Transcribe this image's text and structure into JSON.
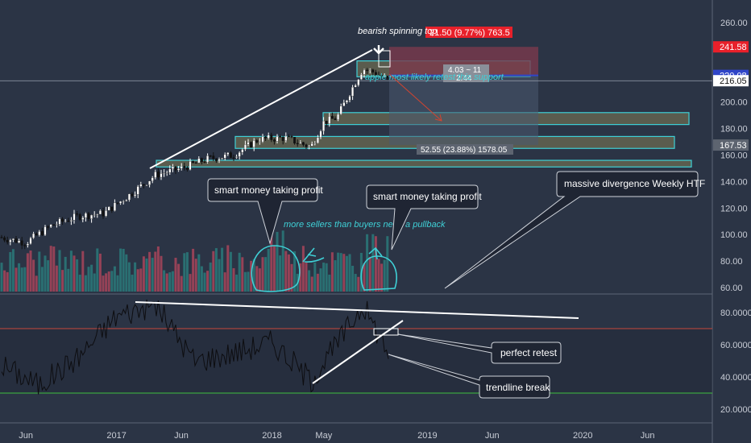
{
  "colors": {
    "background": "#2b3445",
    "candle_up": "#ffffff",
    "candle_down": "#111111",
    "volume_up": "#2a7a7a",
    "volume_down": "#a8455a",
    "zone_stroke": "#3fd0d6",
    "zone_fill": "#6b6a52",
    "trendline": "#ffffff",
    "rsi_line": "#0d0d10",
    "rsi_upper": "#c8483c",
    "rsi_lower": "#3fbf3f",
    "callout_fill": "#1f2533",
    "accent_cyan": "#3fd0d6",
    "price_tag_red": "#e8202a",
    "price_tag_white": "#ffffff",
    "price_tag_blue": "#2f45c8",
    "price_tag_gray": "#5d6470"
  },
  "chart_data": [
    {
      "type": "candlestick",
      "panel": "price",
      "y_axis_ticks": [
        "260.00",
        "240.00",
        "220.00",
        "200.00",
        "180.00",
        "160.00",
        "140.00",
        "120.00",
        "100.00",
        "80.00",
        "60.00"
      ],
      "x_axis_ticks": [
        "Jun",
        "2017",
        "Jun",
        "2018",
        "May",
        "2019",
        "Jun",
        "2020",
        "Jun"
      ],
      "ylim": [
        57,
        266
      ],
      "y_scale": "linear",
      "grid": false,
      "series": [
        {
          "x": [
            "2016-04",
            "2016-06",
            "2016-08",
            "2016-10",
            "2016-12",
            "2017-02",
            "2017-04",
            "2017-06",
            "2017-08",
            "2017-10",
            "2017-12",
            "2018-02",
            "2018-04",
            "2018-05",
            "2018-06",
            "2018-07",
            "2018-08",
            "2018-09",
            "2018-10"
          ],
          "close": [
            98,
            94,
            107,
            114,
            116,
            130,
            145,
            150,
            157,
            160,
            172,
            173,
            166,
            185,
            188,
            207,
            225,
            222,
            216
          ]
        }
      ],
      "price_labels": [
        "241.58",
        "220.08",
        "216.05",
        "167.53"
      ],
      "zones": [
        {
          "range": [
            219,
            231
          ]
        },
        {
          "range": [
            183,
            192
          ]
        },
        {
          "range": [
            165,
            174
          ]
        },
        {
          "range": [
            151,
            156
          ]
        }
      ],
      "measure": {
        "text": "52.55 (23.88%) 1578.05"
      },
      "trade_box": {
        "risk_label": "21.50 (9.77%) 763.5",
        "ratio_label": "4.03 ~ 11",
        "ratio_value": "2.44"
      }
    },
    {
      "type": "bar",
      "panel": "volume",
      "note": "volume bars drawn at the bottom of the price panel"
    },
    {
      "type": "line",
      "panel": "rsi",
      "y_axis_ticks": [
        "80.0000",
        "60.0000",
        "40.0000",
        "20.0000"
      ],
      "ylim": [
        13,
        90
      ],
      "bands": [
        70,
        30
      ],
      "x": [
        "2016-04",
        "2016-07",
        "2016-10",
        "2017-01",
        "2017-04",
        "2017-07",
        "2017-10",
        "2018-01",
        "2018-04",
        "2018-06",
        "2018-08",
        "2018-10"
      ],
      "values": [
        48,
        35,
        52,
        78,
        85,
        50,
        55,
        62,
        38,
        60,
        85,
        55
      ]
    }
  ],
  "annotations": {
    "bearish": "bearish spinning top",
    "support_note": "apple most likely retest this support",
    "smart_money_1": "smart money taking profit",
    "smart_money_2": "smart money taking profit",
    "sellers": "more sellers than buyers need a pullback",
    "divergence": "massive divergence Weekly HTF",
    "perfect_retest": "perfect retest",
    "trendline_break": "trendline break"
  }
}
